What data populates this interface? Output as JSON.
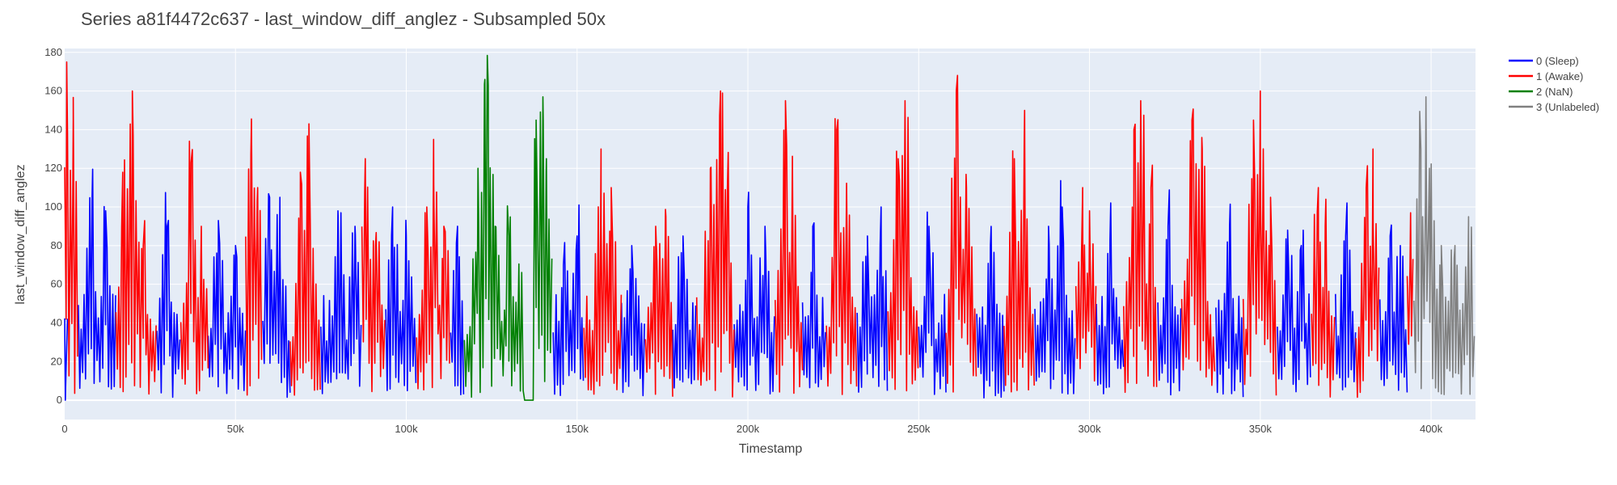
{
  "chart_data": {
    "type": "line",
    "title": "Series a81f4472c637 - last_window_diff_anglez - Subsampled 50x",
    "xlabel": "Timestamp",
    "ylabel": "last_window_diff_anglez",
    "xlim": [
      0,
      413000
    ],
    "ylim": [
      -10,
      182
    ],
    "grid": true,
    "legend_position": "top-right",
    "x_ticks": [
      {
        "value": 0,
        "label": "0"
      },
      {
        "value": 50000,
        "label": "50k"
      },
      {
        "value": 100000,
        "label": "100k"
      },
      {
        "value": 150000,
        "label": "150k"
      },
      {
        "value": 200000,
        "label": "200k"
      },
      {
        "value": 250000,
        "label": "250k"
      },
      {
        "value": 300000,
        "label": "300k"
      },
      {
        "value": 350000,
        "label": "350k"
      },
      {
        "value": 400000,
        "label": "400k"
      }
    ],
    "y_ticks": [
      {
        "value": 0,
        "label": "0"
      },
      {
        "value": 20,
        "label": "20"
      },
      {
        "value": 40,
        "label": "40"
      },
      {
        "value": 60,
        "label": "60"
      },
      {
        "value": 80,
        "label": "80"
      },
      {
        "value": 100,
        "label": "100"
      },
      {
        "value": 120,
        "label": "120"
      },
      {
        "value": 140,
        "label": "140"
      },
      {
        "value": 160,
        "label": "160"
      },
      {
        "value": 180,
        "label": "180"
      }
    ],
    "series": [
      {
        "name": "0 (Sleep)",
        "color": "#0000ff",
        "segments": [
          {
            "range": [
              0,
              1000
            ],
            "peaks": [
              {
                "x": 200,
                "y": 0
              }
            ]
          },
          {
            "range": [
              4000,
              15000
            ],
            "peaks": [
              {
                "x": 8000,
                "y": 102
              },
              {
                "x": 12000,
                "y": 98
              }
            ]
          },
          {
            "range": [
              27000,
              34000
            ],
            "peaks": [
              {
                "x": 30000,
                "y": 90
              }
            ]
          },
          {
            "range": [
              42000,
              53000
            ],
            "peaks": [
              {
                "x": 45000,
                "y": 93
              },
              {
                "x": 50000,
                "y": 80
              }
            ]
          },
          {
            "range": [
              58000,
              66000
            ],
            "peaks": [
              {
                "x": 60000,
                "y": 105
              },
              {
                "x": 63000,
                "y": 105
              }
            ]
          },
          {
            "range": [
              75000,
              87000
            ],
            "peaks": [
              {
                "x": 80000,
                "y": 98
              },
              {
                "x": 85000,
                "y": 90
              }
            ]
          },
          {
            "range": [
              94000,
              103000
            ],
            "peaks": [
              {
                "x": 96000,
                "y": 100
              },
              {
                "x": 100000,
                "y": 85
              }
            ]
          },
          {
            "range": [
              113000,
              117000
            ],
            "peaks": [
              {
                "x": 115000,
                "y": 90
              }
            ]
          },
          {
            "range": [
              143000,
              152000
            ],
            "peaks": [
              {
                "x": 146000,
                "y": 70
              },
              {
                "x": 150000,
                "y": 85
              }
            ]
          },
          {
            "range": [
              163000,
              170000
            ],
            "peaks": [
              {
                "x": 166000,
                "y": 80
              }
            ]
          },
          {
            "range": [
              178000,
              185000
            ],
            "peaks": [
              {
                "x": 181000,
                "y": 85
              }
            ]
          },
          {
            "range": [
              196000,
              208000
            ],
            "peaks": [
              {
                "x": 200000,
                "y": 100
              },
              {
                "x": 205000,
                "y": 90
              }
            ]
          },
          {
            "range": [
              216000,
              223000
            ],
            "peaks": [
              {
                "x": 219000,
                "y": 90
              }
            ]
          },
          {
            "range": [
              232000,
              241000
            ],
            "peaks": [
              {
                "x": 235000,
                "y": 85
              },
              {
                "x": 239000,
                "y": 100
              }
            ]
          },
          {
            "range": [
              250000,
              258000
            ],
            "peaks": [
              {
                "x": 253000,
                "y": 90
              }
            ]
          },
          {
            "range": [
              267000,
              275000
            ],
            "peaks": [
              {
                "x": 271000,
                "y": 80
              }
            ]
          },
          {
            "range": [
              284000,
              296000
            ],
            "peaks": [
              {
                "x": 288000,
                "y": 90
              },
              {
                "x": 292000,
                "y": 100
              }
            ]
          },
          {
            "range": [
              302000,
              310000
            ],
            "peaks": [
              {
                "x": 306000,
                "y": 83
              }
            ]
          },
          {
            "range": [
              320000,
              327000
            ],
            "peaks": [
              {
                "x": 323000,
                "y": 90
              }
            ]
          },
          {
            "range": [
              337000,
              345000
            ],
            "peaks": [
              {
                "x": 341000,
                "y": 90
              }
            ]
          },
          {
            "range": [
              355000,
              365000
            ],
            "peaks": [
              {
                "x": 358000,
                "y": 88
              },
              {
                "x": 362000,
                "y": 80
              }
            ]
          },
          {
            "range": [
              372000,
              378000
            ],
            "peaks": [
              {
                "x": 375000,
                "y": 85
              }
            ]
          },
          {
            "range": [
              385000,
              393000
            ],
            "peaks": [
              {
                "x": 388000,
                "y": 85
              },
              {
                "x": 391000,
                "y": 80
              }
            ]
          }
        ]
      },
      {
        "name": "1 (Awake)",
        "color": "#ff0000",
        "segments": [
          {
            "range": [
              0,
              4000
            ],
            "peaks": [
              {
                "x": 600,
                "y": 175
              },
              {
                "x": 2500,
                "y": 145
              }
            ]
          },
          {
            "range": [
              15000,
              27000
            ],
            "peaks": [
              {
                "x": 17000,
                "y": 118
              },
              {
                "x": 19800,
                "y": 160
              },
              {
                "x": 23000,
                "y": 80
              }
            ]
          },
          {
            "range": [
              34000,
              42000
            ],
            "peaks": [
              {
                "x": 37000,
                "y": 123
              },
              {
                "x": 40000,
                "y": 90
              }
            ]
          },
          {
            "range": [
              53000,
              58000
            ],
            "peaks": [
              {
                "x": 54500,
                "y": 127
              },
              {
                "x": 56500,
                "y": 110
              }
            ]
          },
          {
            "range": [
              66000,
              75000
            ],
            "peaks": [
              {
                "x": 69000,
                "y": 118
              },
              {
                "x": 71500,
                "y": 143
              }
            ]
          },
          {
            "range": [
              87000,
              94000
            ],
            "peaks": [
              {
                "x": 88000,
                "y": 125
              },
              {
                "x": 91000,
                "y": 80
              }
            ]
          },
          {
            "range": [
              103000,
              113000
            ],
            "peaks": [
              {
                "x": 106000,
                "y": 100
              },
              {
                "x": 108000,
                "y": 135
              },
              {
                "x": 111000,
                "y": 90
              }
            ]
          },
          {
            "range": [
              152000,
              163000
            ],
            "peaks": [
              {
                "x": 157000,
                "y": 130
              },
              {
                "x": 160000,
                "y": 110
              }
            ]
          },
          {
            "range": [
              170000,
              178000
            ],
            "peaks": [
              {
                "x": 173000,
                "y": 90
              },
              {
                "x": 176000,
                "y": 95
              }
            ]
          },
          {
            "range": [
              185000,
              196000
            ],
            "peaks": [
              {
                "x": 189000,
                "y": 120
              },
              {
                "x": 192000,
                "y": 160
              },
              {
                "x": 194000,
                "y": 110
              }
            ]
          },
          {
            "range": [
              208000,
              216000
            ],
            "peaks": [
              {
                "x": 211000,
                "y": 155
              },
              {
                "x": 213000,
                "y": 120
              }
            ]
          },
          {
            "range": [
              223000,
              232000
            ],
            "peaks": [
              {
                "x": 226000,
                "y": 140
              },
              {
                "x": 229000,
                "y": 90
              }
            ]
          },
          {
            "range": [
              241000,
              250000
            ],
            "peaks": [
              {
                "x": 244000,
                "y": 125
              },
              {
                "x": 246000,
                "y": 155
              }
            ]
          },
          {
            "range": [
              258000,
              267000
            ],
            "peaks": [
              {
                "x": 261000,
                "y": 160
              },
              {
                "x": 264000,
                "y": 110
              }
            ]
          },
          {
            "range": [
              275000,
              284000
            ],
            "peaks": [
              {
                "x": 278000,
                "y": 125
              },
              {
                "x": 281000,
                "y": 150
              }
            ]
          },
          {
            "range": [
              296000,
              302000
            ],
            "peaks": [
              {
                "x": 298000,
                "y": 110
              },
              {
                "x": 300000,
                "y": 98
              }
            ]
          },
          {
            "range": [
              310000,
              320000
            ],
            "peaks": [
              {
                "x": 313000,
                "y": 140
              },
              {
                "x": 315000,
                "y": 155
              },
              {
                "x": 318000,
                "y": 110
              }
            ]
          },
          {
            "range": [
              327000,
              337000
            ],
            "peaks": [
              {
                "x": 330000,
                "y": 145
              },
              {
                "x": 333000,
                "y": 130
              }
            ]
          },
          {
            "range": [
              345000,
              355000
            ],
            "peaks": [
              {
                "x": 348000,
                "y": 145
              },
              {
                "x": 350000,
                "y": 160
              },
              {
                "x": 353000,
                "y": 105
              }
            ]
          },
          {
            "range": [
              365000,
              372000
            ],
            "peaks": [
              {
                "x": 367000,
                "y": 110
              },
              {
                "x": 369000,
                "y": 90
              }
            ]
          },
          {
            "range": [
              378000,
              385000
            ],
            "peaks": [
              {
                "x": 381000,
                "y": 110
              },
              {
                "x": 383000,
                "y": 130
              }
            ]
          },
          {
            "range": [
              393000,
              395000
            ],
            "peaks": [
              {
                "x": 394000,
                "y": 97
              }
            ]
          }
        ]
      },
      {
        "name": "2 (NaN)",
        "color": "#008000",
        "segments": [
          {
            "range": [
              117000,
              143000
            ],
            "peaks": [
              {
                "x": 121000,
                "y": 120
              },
              {
                "x": 123000,
                "y": 166
              },
              {
                "x": 124000,
                "y": 163
              },
              {
                "x": 126000,
                "y": 90
              },
              {
                "x": 130000,
                "y": 85
              },
              {
                "x": 133000,
                "y": 65
              },
              {
                "x": 138000,
                "y": 145
              },
              {
                "x": 140000,
                "y": 157
              },
              {
                "x": 141000,
                "y": 125
              }
            ],
            "flat": [
              {
                "range": [
                  134500,
                  137500
                ],
                "y": 0
              }
            ]
          }
        ]
      },
      {
        "name": "3 (Unlabeled)",
        "color": "#808080",
        "segments": [
          {
            "range": [
              395000,
              413000
            ],
            "peaks": [
              {
                "x": 397000,
                "y": 130
              },
              {
                "x": 398500,
                "y": 157
              },
              {
                "x": 399500,
                "y": 120
              },
              {
                "x": 403000,
                "y": 80
              },
              {
                "x": 407000,
                "y": 80
              },
              {
                "x": 411000,
                "y": 80
              }
            ]
          }
        ]
      }
    ]
  }
}
